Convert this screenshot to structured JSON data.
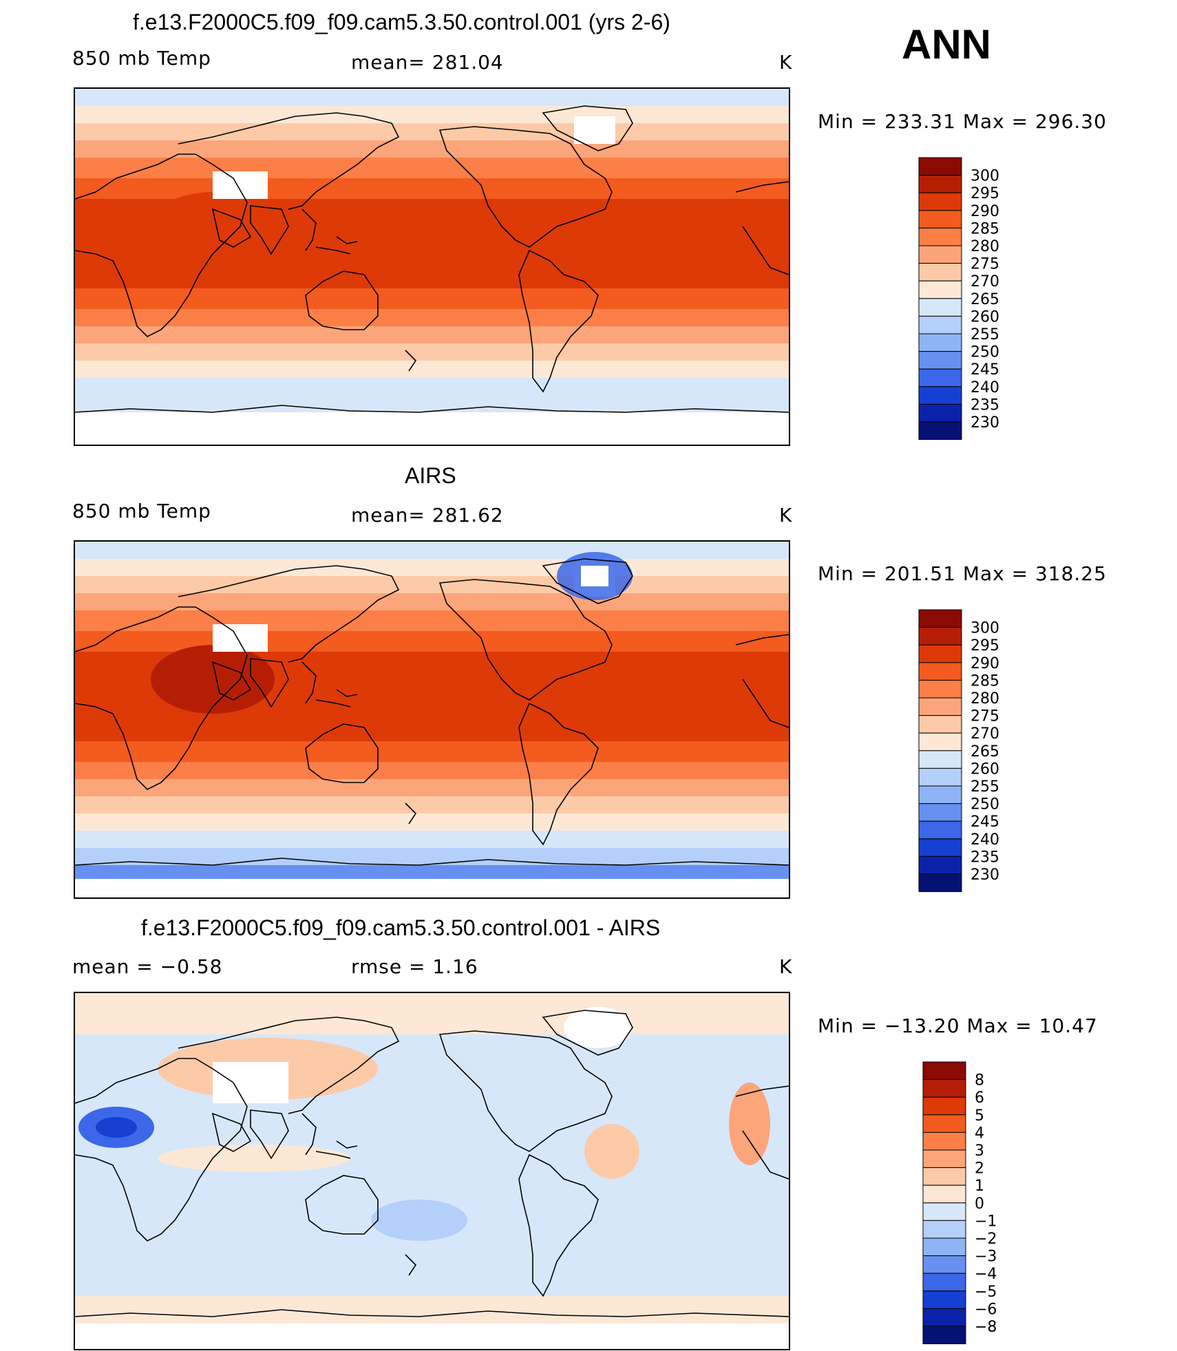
{
  "season": "ANN",
  "panels": [
    {
      "title": "f.e13.F2000C5.f09_f09.cam5.3.50.control.001 (yrs 2-6)",
      "left_label": "850 mb Temp",
      "center_label": "mean= 281.04",
      "units": "K",
      "minmax": "Min = 233.31 Max = 296.30",
      "kind": "abs",
      "colorbar": {
        "labels": [
          "300",
          "295",
          "290",
          "285",
          "280",
          "275",
          "270",
          "265",
          "260",
          "255",
          "250",
          "245",
          "240",
          "235",
          "230"
        ],
        "colors": [
          "#8b0a02",
          "#b51e05",
          "#dd3a07",
          "#f35b1f",
          "#fb7f46",
          "#fca57a",
          "#fdcaa8",
          "#fde8d6",
          "#d7e7fa",
          "#b4cffa",
          "#8fb4f6",
          "#6791f0",
          "#3b67e8",
          "#1540d1",
          "#0a22a8",
          "#051173"
        ]
      }
    },
    {
      "title": "AIRS",
      "left_label": "850 mb Temp",
      "center_label": "mean= 281.62",
      "units": "K",
      "minmax": "Min = 201.51 Max = 318.25",
      "kind": "abs",
      "colorbar": {
        "labels": [
          "300",
          "295",
          "290",
          "285",
          "280",
          "275",
          "270",
          "265",
          "260",
          "255",
          "250",
          "245",
          "240",
          "235",
          "230"
        ],
        "colors": [
          "#8b0a02",
          "#b51e05",
          "#dd3a07",
          "#f35b1f",
          "#fb7f46",
          "#fca57a",
          "#fdcaa8",
          "#fde8d6",
          "#d7e7fa",
          "#b4cffa",
          "#8fb4f6",
          "#6791f0",
          "#3b67e8",
          "#1540d1",
          "#0a22a8",
          "#051173"
        ]
      }
    },
    {
      "title": "f.e13.F2000C5.f09_f09.cam5.3.50.control.001 - AIRS",
      "left_label": "mean = −0.58",
      "center_label": "rmse = 1.16",
      "units": "K",
      "minmax": "Min = −13.20 Max = 10.47",
      "kind": "diff",
      "colorbar": {
        "labels": [
          "8",
          "6",
          "5",
          "4",
          "3",
          "2",
          "1",
          "0",
          "−1",
          "−2",
          "−3",
          "−4",
          "−5",
          "−6",
          "−8"
        ],
        "colors": [
          "#8b0a02",
          "#b51e05",
          "#dd3a07",
          "#f35b1f",
          "#fb7f46",
          "#fca57a",
          "#fdcaa8",
          "#fde8d6",
          "#d7e7fa",
          "#b4cffa",
          "#8fb4f6",
          "#6791f0",
          "#3b67e8",
          "#1540d1",
          "#0a22a8",
          "#051173"
        ]
      }
    }
  ]
}
